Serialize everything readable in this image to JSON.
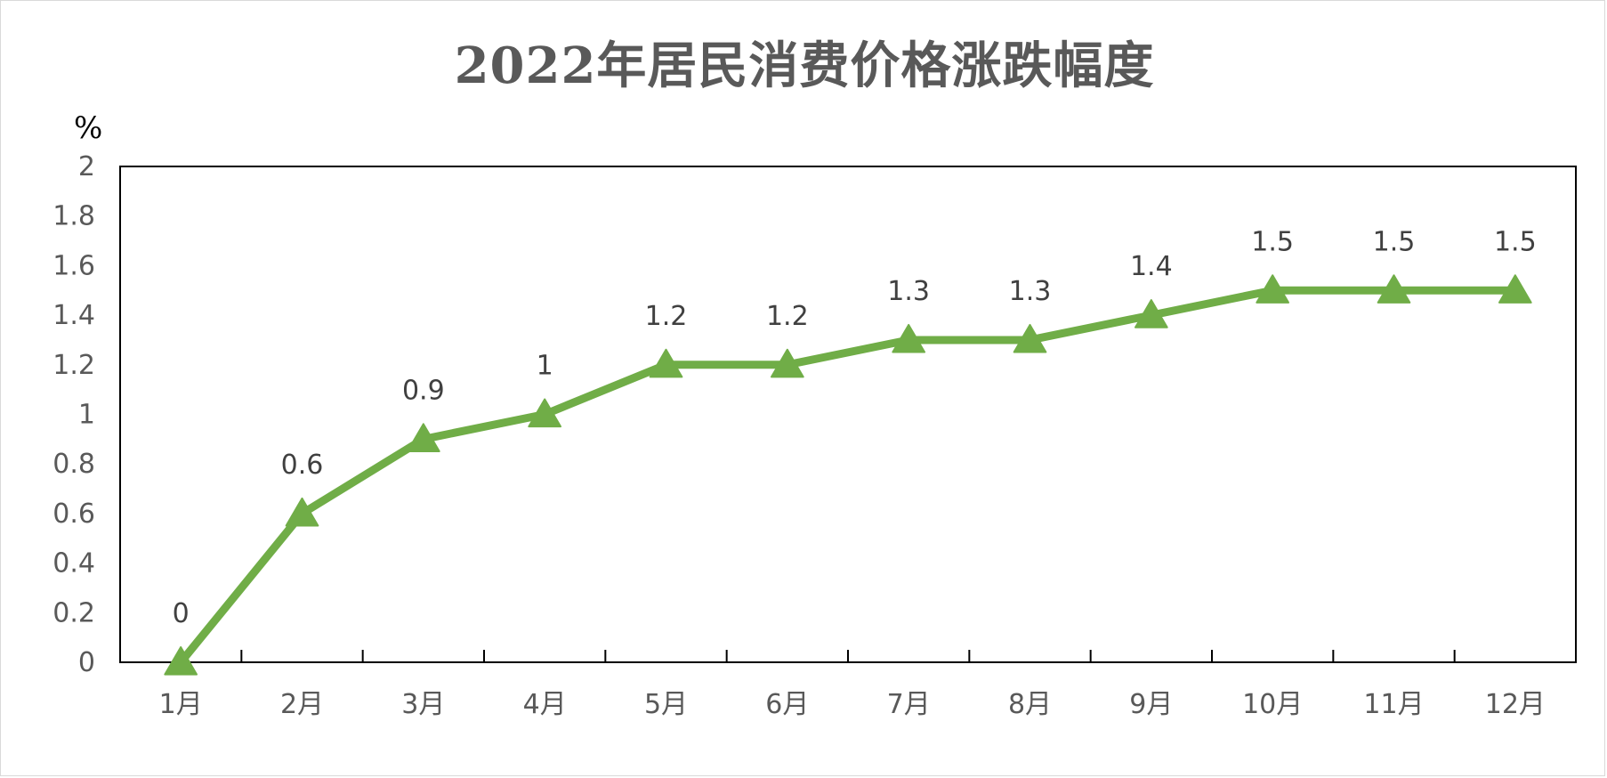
{
  "chart_data": {
    "type": "line",
    "title": "2022年居民消费价格涨跌幅度",
    "unit": "%",
    "categories": [
      "1月",
      "2月",
      "3月",
      "4月",
      "5月",
      "6月",
      "7月",
      "8月",
      "9月",
      "10月",
      "11月",
      "12月"
    ],
    "series": [
      {
        "values": [
          0,
          0.6,
          0.9,
          1,
          1.2,
          1.2,
          1.3,
          1.3,
          1.4,
          1.5,
          1.5,
          1.5
        ],
        "data_labels": [
          "0",
          "0.6",
          "0.9",
          "1",
          "1.2",
          "1.2",
          "1.3",
          "1.3",
          "1.4",
          "1.5",
          "1.5",
          "1.5"
        ],
        "color": "#70ad47",
        "marker": "triangle"
      }
    ],
    "y_ticks": [
      "0",
      "0.2",
      "0.4",
      "0.6",
      "0.8",
      "1",
      "1.2",
      "1.4",
      "1.6",
      "1.8",
      "2"
    ],
    "ylim": [
      0,
      2
    ],
    "grid": false,
    "legend": "none"
  }
}
